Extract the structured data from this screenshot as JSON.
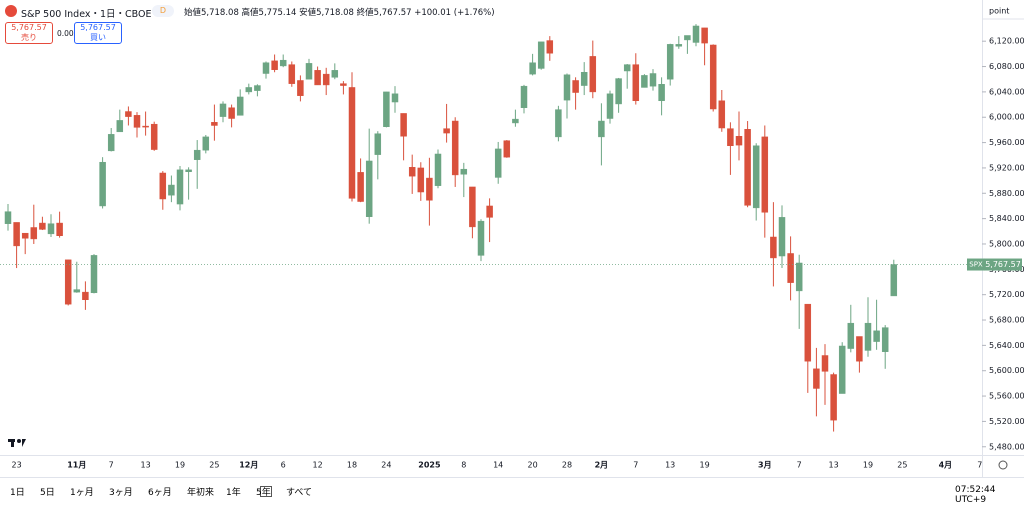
{
  "header": {
    "symbol": "S&P 500 Index・1日・CBOE",
    "badge": "D",
    "ohlc": "始値5,718.08 高値5,775.14 安値5,718.08 終値5,767.57 +100.01 (+1.76%)",
    "sell_price": "5,767.57",
    "sell_label": "売り",
    "spread": "0.00",
    "buy_price": "5,767.57",
    "buy_label": "買い",
    "axis_unit": "point",
    "price_tag_symbol": "SPX",
    "price_tag": "5,767.57"
  },
  "toolbar": {
    "ranges": [
      "1日",
      "5日",
      "1ヶ月",
      "3ヶ月",
      "6ヶ月",
      "年初来",
      "1年",
      "5年",
      "すべて"
    ],
    "clock": "07:52:44 UTC+9"
  },
  "chart_data": {
    "type": "candlestick",
    "up_color": "#6ca583",
    "down_color": "#d9513c",
    "grid": false,
    "ylim": [
      5467,
      6185
    ],
    "yticks": [
      {
        "value": 5480,
        "label": "5,480.00"
      },
      {
        "value": 5520,
        "label": "5,520.00"
      },
      {
        "value": 5560,
        "label": "5,560.00"
      },
      {
        "value": 5600,
        "label": "5,600.00"
      },
      {
        "value": 5640,
        "label": "5,640.00"
      },
      {
        "value": 5680,
        "label": "5,680.00"
      },
      {
        "value": 5720,
        "label": "5,720.00"
      },
      {
        "value": 5760,
        "label": "5,760.00"
      },
      {
        "value": 5800,
        "label": "5,800.00"
      },
      {
        "value": 5840,
        "label": "5,840.00"
      },
      {
        "value": 5880,
        "label": "5,880.00"
      },
      {
        "value": 5920,
        "label": "5,920.00"
      },
      {
        "value": 5960,
        "label": "5,960.00"
      },
      {
        "value": 6000,
        "label": "6,000.00"
      },
      {
        "value": 6040,
        "label": "6,040.00"
      },
      {
        "value": 6080,
        "label": "6,080.00"
      },
      {
        "value": 6120,
        "label": "6,120.00"
      }
    ],
    "categories": [
      null,
      "23",
      null,
      null,
      null,
      null,
      null,
      null,
      "11月",
      null,
      null,
      null,
      "7",
      null,
      null,
      null,
      "13",
      null,
      null,
      null,
      "19",
      null,
      null,
      null,
      "25",
      null,
      null,
      null,
      "12月",
      null,
      null,
      null,
      "6",
      null,
      null,
      null,
      "12",
      null,
      null,
      null,
      "18",
      null,
      null,
      null,
      "24",
      null,
      null,
      null,
      null,
      "2025",
      null,
      null,
      null,
      "8",
      null,
      null,
      null,
      "14",
      null,
      null,
      null,
      "20",
      null,
      null,
      null,
      "28",
      null,
      null,
      null,
      "2月",
      null,
      null,
      null,
      "7",
      null,
      null,
      null,
      "13",
      null,
      null,
      null,
      "19",
      null,
      null,
      null,
      null,
      null,
      null,
      "3月",
      null,
      null,
      null,
      "7",
      null,
      null,
      null,
      "13",
      null,
      null,
      null,
      "19",
      null,
      null,
      null,
      "25",
      null,
      null,
      null,
      null,
      "4月",
      null,
      null,
      null,
      "7"
    ],
    "open": [
      5832,
      5834,
      5817,
      5826,
      5833,
      5816,
      5833,
      5775,
      5724,
      5724,
      5723,
      5860,
      5947,
      5977,
      6009,
      6003,
      5986,
      5989,
      5912,
      5877,
      5863,
      5914,
      5933,
      5948,
      5992,
      6001,
      6015,
      6003,
      6040,
      6042,
      6069,
      6089,
      6081,
      6083,
      6058,
      6060,
      6074,
      6068,
      6063,
      6053,
      6047,
      5913,
      5843,
      5941,
      5985,
      6024,
      6006,
      5921,
      5920,
      5904,
      5892,
      5982,
      5994,
      5910,
      5890,
      5782,
      5860,
      5905,
      5963,
      5991,
      6015,
      6068,
      6077,
      6121,
      5969,
      6027,
      6058,
      6050,
      6096,
      5969,
      5998,
      6021,
      6073,
      6083,
      6047,
      6049,
      6026,
      6060,
      6112,
      6122,
      6118,
      6141,
      6114,
      6026,
      5982,
      5970,
      5981,
      5857,
      5969,
      5811,
      5781,
      5785,
      5726,
      5705,
      5603,
      5624,
      5594,
      5564,
      5635,
      5654,
      5632,
      5646,
      5630,
      5718.08,
      null,
      null,
      null,
      null,
      null,
      null,
      null,
      null,
      null,
      null
    ],
    "high": [
      5863,
      5834,
      5817,
      5862,
      5843,
      5847,
      5851,
      5775,
      5772,
      5741,
      5784,
      5937,
      5983,
      6012,
      6017,
      6008,
      6009,
      5993,
      5915,
      5908,
      5923,
      5921,
      5964,
      5972,
      6020,
      6025,
      6020,
      6044,
      6053,
      6052,
      6088,
      6099,
      6099,
      6088,
      6066,
      6092,
      6080,
      6078,
      6085,
      6057,
      6071,
      5935,
      5982,
      5978,
      6040,
      6049,
      6006,
      5941,
      5929,
      5936,
      5949,
      6021,
      6000,
      5928,
      5890,
      5839,
      5872,
      5961,
      5964,
      6012,
      6051,
      6100,
      6119,
      6128,
      6018,
      6069,
      6063,
      6087,
      6121,
      6022,
      6042,
      6062,
      6084,
      6101,
      6068,
      6076,
      6063,
      6116,
      6128,
      6129,
      6147,
      6141,
      6115,
      6043,
      5992,
      6009,
      5994,
      5959,
      5987,
      5866,
      5861,
      5812,
      5783,
      5705,
      5636,
      5642,
      5597,
      5645,
      5704,
      5654,
      5716,
      5712,
      5672,
      5775.14,
      null,
      null,
      null,
      null,
      null,
      null,
      null,
      null,
      null,
      null
    ],
    "low": [
      5821,
      5762,
      5784,
      5800,
      5822,
      5811,
      5810,
      5703,
      5723,
      5696,
      5722,
      5856,
      5946,
      5977,
      5987,
      5968,
      5971,
      5947,
      5854,
      5866,
      5853,
      5870,
      5887,
      5943,
      5963,
      5992,
      5984,
      6003,
      6036,
      6033,
      6061,
      6071,
      6079,
      6048,
      6025,
      6060,
      6051,
      6035,
      6060,
      6036,
      5867,
      5866,
      5832,
      5902,
      5984,
      6007,
      5932,
      5879,
      5868,
      5829,
      5888,
      5960,
      5890,
      5874,
      5809,
      5773,
      5803,
      5895,
      5936,
      5985,
      6006,
      6066,
      6075,
      6089,
      5962,
      5998,
      6012,
      6035,
      6030,
      5924,
      5990,
      6007,
      6045,
      6020,
      6047,
      6042,
      6003,
      6050,
      6108,
      6100,
      6112,
      6082,
      6009,
      5977,
      5909,
      5932,
      5858,
      5837,
      5810,
      5733,
      5762,
      5711,
      5666,
      5565,
      5528,
      5546,
      5504,
      5564,
      5629,
      5597,
      5622,
      5633,
      5603,
      5718.08,
      null,
      null,
      null,
      null,
      null,
      null,
      null,
      null,
      null,
      null
    ],
    "close": [
      5851,
      5797,
      5809,
      5808,
      5823,
      5832,
      5813,
      5705,
      5728,
      5712,
      5782,
      5929,
      5973,
      5995,
      6001,
      5984,
      5985,
      5949,
      5871,
      5893,
      5917,
      5917,
      5948,
      5969,
      5987,
      6021,
      5998,
      6032,
      6047,
      6050,
      6086,
      6075,
      6090,
      6053,
      6034,
      6085,
      6051,
      6051,
      6074,
      6050,
      5872,
      5867,
      5931,
      5974,
      6040,
      6037,
      5970,
      5907,
      5882,
      5869,
      5942,
      5975,
      5909,
      5918,
      5827,
      5836,
      5842,
      5950,
      5937,
      5997,
      6049,
      6086,
      6119,
      6101,
      6012,
      6067,
      6039,
      6071,
      6040,
      5994,
      6037,
      6061,
      6083,
      6026,
      6066,
      6069,
      6052,
      6115,
      6115,
      6129,
      6144,
      6117,
      6013,
      5983,
      5955,
      5956,
      5861,
      5955,
      5850,
      5778,
      5842,
      5739,
      5770,
      5615,
      5572,
      5599,
      5522,
      5639,
      5675,
      5615,
      5675,
      5663,
      5668,
      5767.57,
      null,
      null,
      null,
      null,
      null,
      null,
      null,
      null,
      null,
      null
    ]
  }
}
